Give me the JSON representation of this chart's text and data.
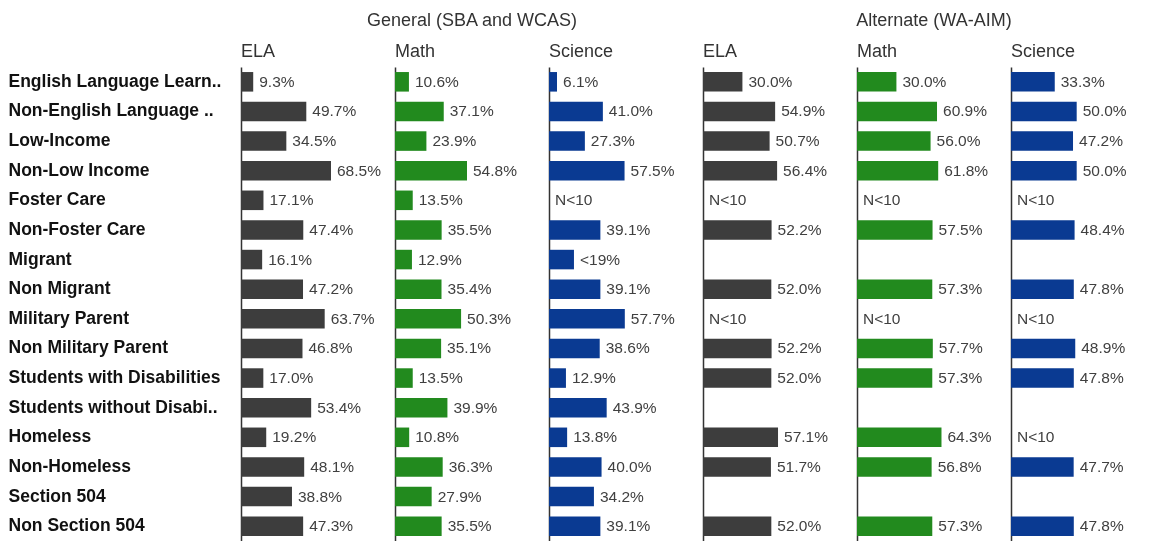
{
  "chart_data": [
    {
      "type": "bar",
      "orientation": "horizontal",
      "subtitle": "ELA",
      "tick_labels": "y",
      "color": "#3d3d3d",
      "categories": [
        "English Language Learn..",
        "Non-English Language ..",
        "Low-Income",
        "Non-Low Income",
        "Foster Care",
        "Non-Foster Care",
        "Migrant",
        "Non Migrant",
        "Military Parent",
        "Non Military Parent",
        "Students with Disabilities",
        "Students without Disabi..",
        "Homeless",
        "Non-Homeless",
        "Section 504",
        "Non Section 504"
      ],
      "values": [
        9.3,
        49.7,
        34.5,
        68.5,
        17.1,
        47.4,
        16.1,
        47.2,
        63.7,
        46.8,
        17.0,
        53.4,
        19.2,
        48.1,
        38.8,
        47.3
      ],
      "value_labels": [
        "9.3%",
        "49.7%",
        "34.5%",
        "68.5%",
        "17.1%",
        "47.4%",
        "16.1%",
        "47.2%",
        "63.7%",
        "46.8%",
        "17.0%",
        "53.4%",
        "19.2%",
        "48.1%",
        "38.8%",
        "47.3%"
      ]
    },
    {
      "type": "bar",
      "orientation": "horizontal",
      "title": "General (SBA and WCAS)",
      "subtitle": "Math",
      "tick_labels": false,
      "color": "#228a1e",
      "categories": [
        "English Language Learn..",
        "Non-English Language ..",
        "Low-Income",
        "Non-Low Income",
        "Foster Care",
        "Non-Foster Care",
        "Migrant",
        "Non Migrant",
        "Military Parent",
        "Non Military Parent",
        "Students with Disabilities",
        "Students without Disabi..",
        "Homeless",
        "Non-Homeless",
        "Section 504",
        "Non Section 504"
      ],
      "values": [
        10.6,
        37.1,
        23.9,
        54.8,
        13.5,
        35.5,
        12.9,
        35.4,
        50.3,
        35.1,
        13.5,
        39.9,
        10.8,
        36.3,
        27.9,
        35.5
      ],
      "value_labels": [
        "10.6%",
        "37.1%",
        "23.9%",
        "54.8%",
        "13.5%",
        "35.5%",
        "12.9%",
        "35.4%",
        "50.3%",
        "35.1%",
        "13.5%",
        "39.9%",
        "10.8%",
        "36.3%",
        "27.9%",
        "35.5%"
      ]
    },
    {
      "type": "bar",
      "orientation": "horizontal",
      "subtitle": "Science",
      "tick_labels": false,
      "color": "#0a3a92",
      "categories": [
        "English Language Learn..",
        "Non-English Language ..",
        "Low-Income",
        "Non-Low Income",
        "Foster Care",
        "Non-Foster Care",
        "Migrant",
        "Non Migrant",
        "Military Parent",
        "Non Military Parent",
        "Students with Disabilities",
        "Students without Disabi..",
        "Homeless",
        "Non-Homeless",
        "Section 504",
        "Non Section 504"
      ],
      "values": [
        6.1,
        41.0,
        27.3,
        57.5,
        null,
        39.1,
        19,
        39.1,
        57.7,
        38.6,
        12.9,
        43.9,
        13.8,
        40.0,
        34.2,
        39.1
      ],
      "value_labels": [
        "6.1%",
        "41.0%",
        "27.3%",
        "57.5%",
        "N<10",
        "39.1%",
        "<19%",
        "39.1%",
        "57.7%",
        "38.6%",
        "12.9%",
        "43.9%",
        "13.8%",
        "40.0%",
        "34.2%",
        "39.1%"
      ]
    },
    {
      "type": "bar",
      "orientation": "horizontal",
      "subtitle": "ELA",
      "tick_labels": false,
      "color": "#3d3d3d",
      "categories": [
        "English Language Learn..",
        "Non-English Language ..",
        "Low-Income",
        "Non-Low Income",
        "Foster Care",
        "Non-Foster Care",
        "Migrant",
        "Non Migrant",
        "Military Parent",
        "Non Military Parent",
        "Students with Disabilities",
        "Students without Disabi..",
        "Homeless",
        "Non-Homeless",
        "Section 504",
        "Non Section 504"
      ],
      "values": [
        30.0,
        54.9,
        50.7,
        56.4,
        null,
        52.2,
        null,
        52.0,
        null,
        52.2,
        52.0,
        null,
        57.1,
        51.7,
        null,
        52.0
      ],
      "value_labels": [
        "30.0%",
        "54.9%",
        "50.7%",
        "56.4%",
        "N<10",
        "52.2%",
        null,
        "52.0%",
        "N<10",
        "52.2%",
        "52.0%",
        null,
        "57.1%",
        "51.7%",
        null,
        "52.0%"
      ]
    },
    {
      "type": "bar",
      "orientation": "horizontal",
      "title": "Alternate (WA-AIM)",
      "subtitle": "Math",
      "tick_labels": false,
      "color": "#228a1e",
      "categories": [
        "English Language Learn..",
        "Non-English Language ..",
        "Low-Income",
        "Non-Low Income",
        "Foster Care",
        "Non-Foster Care",
        "Migrant",
        "Non Migrant",
        "Military Parent",
        "Non Military Parent",
        "Students with Disabilities",
        "Students without Disabi..",
        "Homeless",
        "Non-Homeless",
        "Section 504",
        "Non Section 504"
      ],
      "values": [
        30.0,
        60.9,
        56.0,
        61.8,
        null,
        57.5,
        null,
        57.3,
        null,
        57.7,
        57.3,
        null,
        64.3,
        56.8,
        null,
        57.3
      ],
      "value_labels": [
        "30.0%",
        "60.9%",
        "56.0%",
        "61.8%",
        "N<10",
        "57.5%",
        null,
        "57.3%",
        "N<10",
        "57.7%",
        "57.3%",
        null,
        "64.3%",
        "56.8%",
        null,
        "57.3%"
      ]
    },
    {
      "type": "bar",
      "orientation": "horizontal",
      "subtitle": "Science",
      "tick_labels": false,
      "color": "#0a3a92",
      "categories": [
        "English Language Learn..",
        "Non-English Language ..",
        "Low-Income",
        "Non-Low Income",
        "Foster Care",
        "Non-Foster Care",
        "Migrant",
        "Non Migrant",
        "Military Parent",
        "Non Military Parent",
        "Students with Disabilities",
        "Students without Disabi..",
        "Homeless",
        "Non-Homeless",
        "Section 504",
        "Non Section 504"
      ],
      "values": [
        33.3,
        50.0,
        47.2,
        50.0,
        null,
        48.4,
        null,
        47.8,
        null,
        48.9,
        47.8,
        null,
        null,
        47.7,
        null,
        47.8
      ],
      "value_labels": [
        "33.3%",
        "50.0%",
        "47.2%",
        "50.0%",
        "N<10",
        "48.4%",
        null,
        "47.8%",
        "N<10",
        "48.9%",
        "47.8%",
        null,
        "N<10",
        "47.7%",
        null,
        "47.8%"
      ]
    }
  ]
}
